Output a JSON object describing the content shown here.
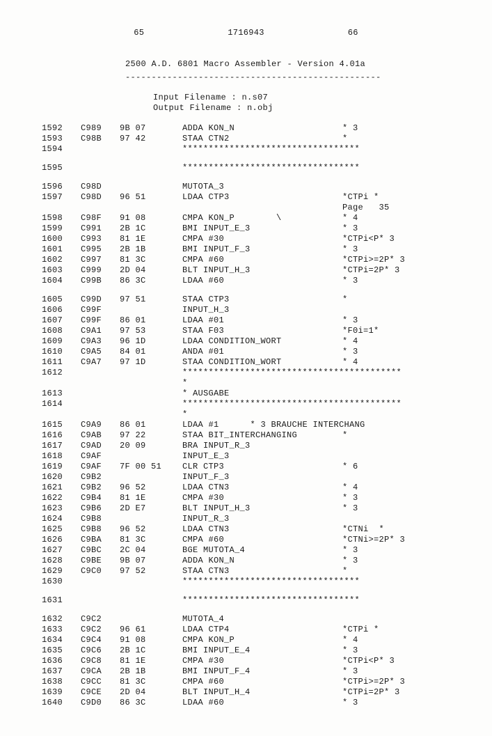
{
  "header": {
    "left_page": "65",
    "doc_num": "1716943",
    "right_page": "66",
    "title": "2500 A.D. 6801 Macro Assembler   -   Version 4.01a",
    "underline": "-------------------------------------------------",
    "input_line": "Input  Filename : n.s07",
    "output_line": "Output Filename : n.obj"
  },
  "page_label": "Page   35",
  "star34": "**********************************",
  "star_block": "******************************************",
  "ausgabe": "* AUSGABE",
  "rows": [
    {
      "l": "1592",
      "a": "C989",
      "b": "9B 07",
      "i": "ADDA KON_N",
      "c": "* 3"
    },
    {
      "l": "1593",
      "a": "C98B",
      "b": "97 42",
      "i": "STAA CTN2",
      "c": "*"
    },
    {
      "l": "1594",
      "a": "",
      "b": "",
      "i": "**********************************",
      "c": "",
      "stars": true
    },
    {
      "blank": true
    },
    {
      "l": "1595",
      "a": "",
      "b": "",
      "i": "**********************************",
      "c": "",
      "stars": true
    },
    {
      "blank": true
    },
    {
      "l": "1596",
      "a": "C98D",
      "b": "",
      "i": "MUTOTA_3",
      "c": ""
    },
    {
      "l": "1597",
      "a": "C98D",
      "b": "96 51",
      "i": "LDAA CTP3",
      "c": "*CTPi *"
    },
    {
      "page": true
    },
    {
      "l": "1598",
      "a": "C98F",
      "b": "91 08",
      "i": "CMPA KON_P        \\",
      "c": "* 4"
    },
    {
      "l": "1599",
      "a": "C991",
      "b": "2B 1C",
      "i": "BMI INPUT_E_3",
      "c": "* 3"
    },
    {
      "l": "1600",
      "a": "C993",
      "b": "81 1E",
      "i": "CMPA #30",
      "c": "*CTPi<P* 3"
    },
    {
      "l": "1601",
      "a": "C995",
      "b": "2B 1B",
      "i": "BMI INPUT_F_3",
      "c": "* 3"
    },
    {
      "l": "1602",
      "a": "C997",
      "b": "81 3C",
      "i": "CMPA #60",
      "c": "*CTPi>=2P* 3"
    },
    {
      "l": "1603",
      "a": "C999",
      "b": "2D 04",
      "i": "BLT INPUT_H_3",
      "c": "*CTPi=2P* 3"
    },
    {
      "l": "1604",
      "a": "C99B",
      "b": "86 3C",
      "i": "LDAA #60",
      "c": "* 3"
    },
    {
      "blank": true
    },
    {
      "l": "1605",
      "a": "C99D",
      "b": "97 51",
      "i": "STAA CTP3",
      "c": "*"
    },
    {
      "l": "1606",
      "a": "C99F",
      "b": "",
      "i": "INPUT_H_3",
      "c": ""
    },
    {
      "l": "1607",
      "a": "C99F",
      "b": "86 01",
      "i": "LDAA #01",
      "c": "* 3"
    },
    {
      "l": "1608",
      "a": "C9A1",
      "b": "97 53",
      "i": "STAA F03",
      "c": "*F0i=1*"
    },
    {
      "l": "1609",
      "a": "C9A3",
      "b": "96 1D",
      "i": "LDAA CONDITION_WORT",
      "c": "* 4"
    },
    {
      "l": "1610",
      "a": "C9A5",
      "b": "84 01",
      "i": "ANDA #01",
      "c": "* 3"
    },
    {
      "l": "1611",
      "a": "C9A7",
      "b": "97 1D",
      "i": "STAA CONDITION_WORT",
      "c": "* 4"
    },
    {
      "l": "1612",
      "a": "",
      "b": "",
      "i": "******************************************",
      "c": "",
      "stars": true
    },
    {
      "l": "",
      "a": "",
      "b": "",
      "i": "*",
      "c": "",
      "stars": true
    },
    {
      "l": "1613",
      "a": "",
      "b": "",
      "i": "* AUSGABE",
      "c": "",
      "stars": true
    },
    {
      "l": "1614",
      "a": "",
      "b": "",
      "i": "******************************************",
      "c": "",
      "stars": true
    },
    {
      "l": "",
      "a": "",
      "b": "",
      "i": "*",
      "c": "",
      "stars": true
    },
    {
      "l": "1615",
      "a": "C9A9",
      "b": "86 01",
      "i": "LDAA #1      * 3 BRAUCHE INTERCHANG",
      "c": ""
    },
    {
      "l": "1616",
      "a": "C9AB",
      "b": "97 22",
      "i": "STAA BIT_INTERCHANGING",
      "c": "*"
    },
    {
      "l": "1617",
      "a": "C9AD",
      "b": "20 09",
      "i": "BRA INPUT_R_3",
      "c": ""
    },
    {
      "l": "1618",
      "a": "C9AF",
      "b": "",
      "i": "INPUT_E_3",
      "c": ""
    },
    {
      "l": "1619",
      "a": "C9AF",
      "b": "7F 00 51",
      "i": "CLR CTP3",
      "c": "* 6"
    },
    {
      "l": "1620",
      "a": "C9B2",
      "b": "",
      "i": "INPUT_F_3",
      "c": ""
    },
    {
      "l": "1621",
      "a": "C9B2",
      "b": "96 52",
      "i": "LDAA CTN3",
      "c": "* 4"
    },
    {
      "l": "1622",
      "a": "C9B4",
      "b": "81 1E",
      "i": "CMPA #30",
      "c": "* 3"
    },
    {
      "l": "1623",
      "a": "C9B6",
      "b": "2D E7",
      "i": "BLT INPUT_H_3",
      "c": "* 3"
    },
    {
      "l": "1624",
      "a": "C9B8",
      "b": "",
      "i": "INPUT_R_3",
      "c": ""
    },
    {
      "l": "1625",
      "a": "C9B8",
      "b": "96 52",
      "i": "LDAA CTN3",
      "c": "*CTNi  *"
    },
    {
      "l": "1626",
      "a": "C9BA",
      "b": "81 3C",
      "i": "CMPA #60",
      "c": "*CTNi>=2P* 3"
    },
    {
      "l": "1627",
      "a": "C9BC",
      "b": "2C 04",
      "i": "BGE MUTOTA_4",
      "c": "* 3"
    },
    {
      "l": "1628",
      "a": "C9BE",
      "b": "9B 07",
      "i": "ADDA KON_N",
      "c": "* 3"
    },
    {
      "l": "1629",
      "a": "C9C0",
      "b": "97 52",
      "i": "STAA CTN3",
      "c": "*"
    },
    {
      "l": "1630",
      "a": "",
      "b": "",
      "i": "**********************************",
      "c": "",
      "stars": true
    },
    {
      "blank": true
    },
    {
      "l": "1631",
      "a": "",
      "b": "",
      "i": "**********************************",
      "c": "",
      "stars": true
    },
    {
      "blank": true
    },
    {
      "l": "1632",
      "a": "C9C2",
      "b": "",
      "i": "MUTOTA_4",
      "c": ""
    },
    {
      "l": "1633",
      "a": "C9C2",
      "b": "96 61",
      "i": "LDAA CTP4",
      "c": "*CTPi *"
    },
    {
      "l": "1634",
      "a": "C9C4",
      "b": "91 08",
      "i": "CMPA KON_P",
      "c": "* 4"
    },
    {
      "l": "1635",
      "a": "C9C6",
      "b": "2B 1C",
      "i": "BMI INPUT_E_4",
      "c": "* 3"
    },
    {
      "l": "1636",
      "a": "C9C8",
      "b": "81 1E",
      "i": "CMPA #30",
      "c": "*CTPi<P* 3"
    },
    {
      "l": "1637",
      "a": "C9CA",
      "b": "2B 1B",
      "i": "BMI INPUT_F_4",
      "c": "* 3"
    },
    {
      "l": "1638",
      "a": "C9CC",
      "b": "81 3C",
      "i": "CMPA #60",
      "c": "*CTPi>=2P* 3"
    },
    {
      "l": "1639",
      "a": "C9CE",
      "b": "2D 04",
      "i": "BLT INPUT_H_4",
      "c": "*CTPi=2P* 3"
    },
    {
      "l": "1640",
      "a": "C9D0",
      "b": "86 3C",
      "i": "LDAA #60",
      "c": "* 3"
    }
  ]
}
